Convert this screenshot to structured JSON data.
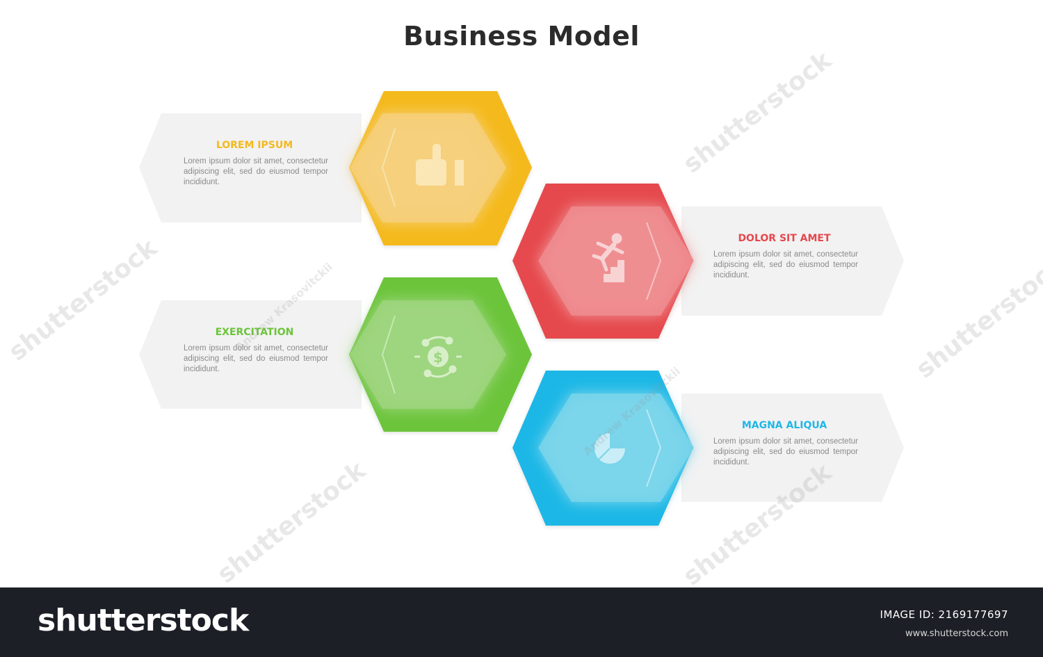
{
  "title": "Business Model",
  "items": [
    {
      "heading": "LOREM IPSUM",
      "body": "Lorem ipsum dolor sit amet, consectetur adipiscing elit, sed do eiusmod tempor incididunt.",
      "color": "#f4b91e",
      "icon": "thumbs-up-icon"
    },
    {
      "heading": "DOLOR SIT AMET",
      "body": "Lorem ipsum dolor sit amet, consectetur adipiscing elit, sed do eiusmod tempor incididunt.",
      "color": "#e5484d",
      "icon": "climbing-stairs-icon"
    },
    {
      "heading": "EXERCITATION",
      "body": "Lorem ipsum dolor sit amet, consectetur adipiscing elit, sed do eiusmod tempor incididunt.",
      "color": "#6cc43a",
      "icon": "dollar-network-icon"
    },
    {
      "heading": "MAGNA ALIQUA",
      "body": "Lorem ipsum dolor sit amet, consectetur adipiscing elit, sed do eiusmod tempor incididunt.",
      "color": "#1fb7e6",
      "icon": "pie-chart-icon"
    }
  ],
  "watermark": {
    "text": "shutterstock",
    "author": "Andrew Krasovitckii"
  },
  "footer": {
    "logo": "shutterstock",
    "image_id": "IMAGE ID: 2169177697",
    "url": "www.shutterstock.com"
  }
}
